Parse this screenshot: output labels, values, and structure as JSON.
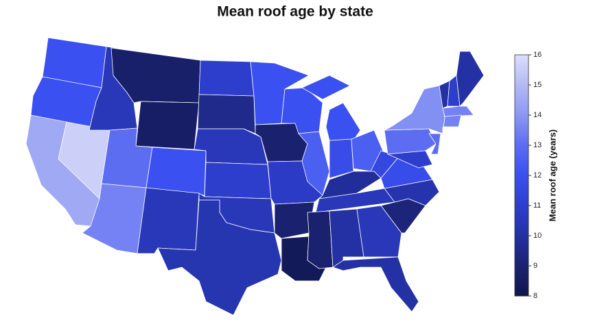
{
  "chart_data": {
    "type": "choropleth",
    "title": "Mean roof age by state",
    "colorbar_label": "Mean roof age (years)",
    "clim": [
      8,
      16
    ],
    "cticks": [
      8,
      9,
      10,
      11,
      12,
      13,
      14,
      15,
      16
    ],
    "colorscale": [
      "#10164f",
      "#1a2270",
      "#2331a4",
      "#2d3ecd",
      "#3a50f0",
      "#5c6df2",
      "#8b97f3",
      "#b3baf5",
      "#dcdffb"
    ],
    "values": [
      12,
      12,
      14.5,
      15.6,
      10.5,
      8.8,
      8.7,
      13,
      12,
      13.5,
      10.5,
      11,
      9.5,
      10.5,
      11,
      10.5,
      10.3,
      12,
      9,
      10.8,
      9,
      8.3,
      12,
      12.5,
      12,
      12,
      11.8,
      12.5,
      9.8,
      10.5,
      9,
      10,
      10.5,
      10,
      9.2,
      10.2,
      11.8,
      11.5,
      13,
      13.8,
      11,
      13,
      10,
      11,
      10,
      13.5,
      13.5
    ]
  }
}
